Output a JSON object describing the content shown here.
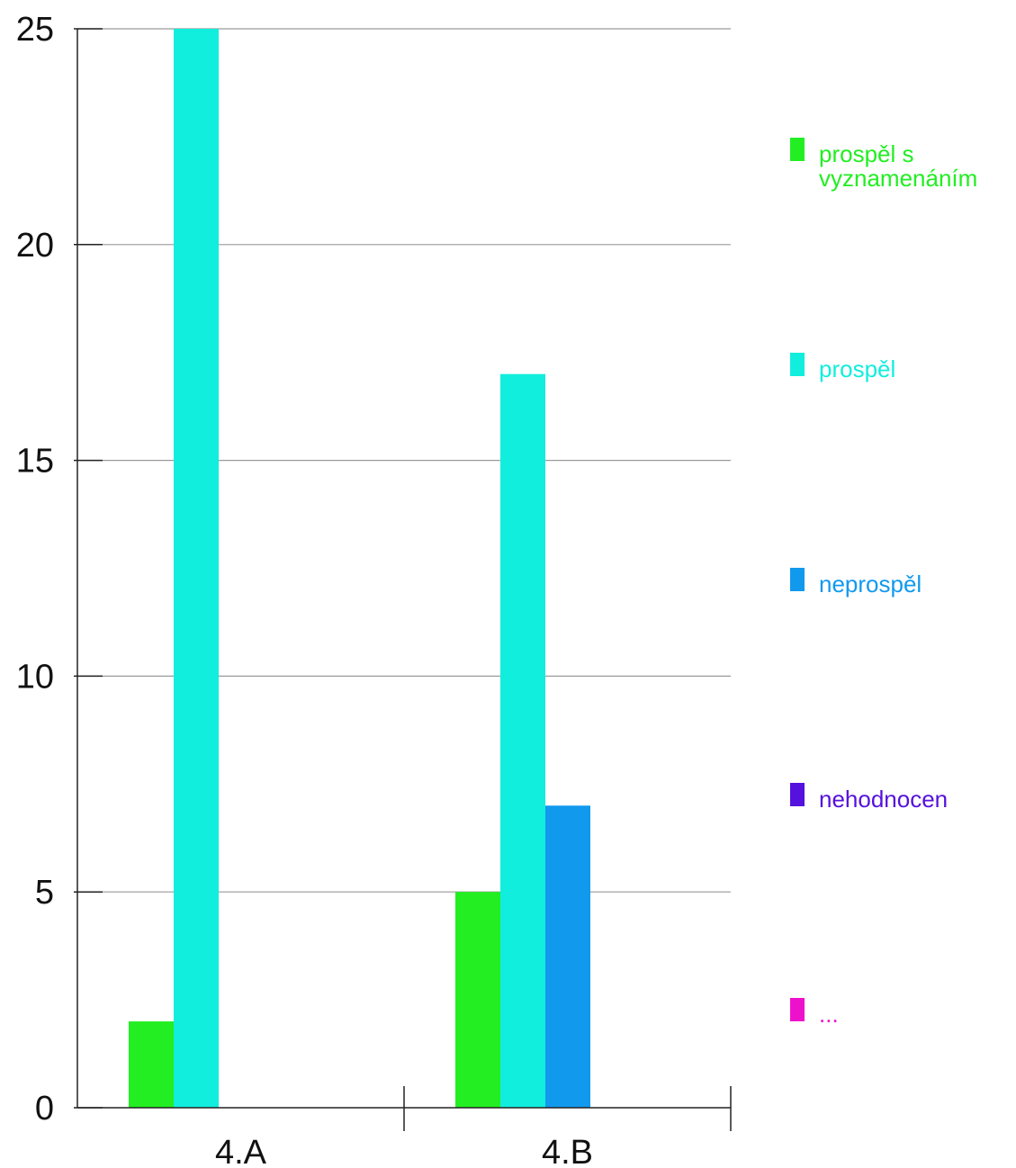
{
  "chart_data": {
    "type": "bar",
    "title": "",
    "xlabel": "",
    "ylabel": "",
    "categories": [
      "4.A",
      "4.B"
    ],
    "ylim": [
      0,
      25
    ],
    "yticks": [
      0,
      5,
      10,
      15,
      20,
      25
    ],
    "grid": true,
    "legend_position": "right",
    "series": [
      {
        "name": "prospěl s vyznamenáním",
        "color": "#22ee22",
        "values": [
          2,
          5
        ]
      },
      {
        "name": "prospěl",
        "color": "#11eedd",
        "values": [
          25,
          17
        ]
      },
      {
        "name": "neprospěl",
        "color": "#1199ee",
        "values": [
          0,
          7
        ]
      },
      {
        "name": "nehodnocen",
        "color": "#5511dd",
        "values": [
          0,
          0
        ]
      },
      {
        "name": "...",
        "color": "#ee11cc",
        "values": [
          0,
          0
        ]
      }
    ]
  }
}
